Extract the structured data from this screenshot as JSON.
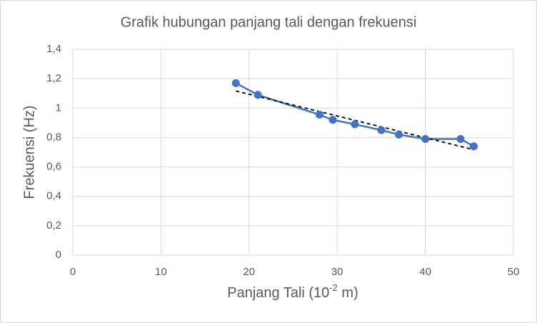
{
  "chart_data": {
    "type": "scatter",
    "title": "Grafik hubungan  panjang tali dengan frekuensi",
    "x_label": [
      "Panjang Tali  (10",
      "-2",
      " m)"
    ],
    "y_label": "Frekuensi (Hz)",
    "x": [
      18.5,
      21,
      28,
      29.5,
      32,
      35,
      37,
      40,
      44,
      45.5
    ],
    "series": [
      {
        "color": "#4472c4",
        "values": [
          1.17,
          1.09,
          0.955,
          0.92,
          0.89,
          0.85,
          0.82,
          0.79,
          0.79,
          0.74
        ]
      }
    ],
    "trendline": "linear",
    "xlim": [
      0,
      50
    ],
    "xticks": [
      0,
      10,
      20,
      30,
      40,
      50
    ],
    "ylim": [
      0,
      1.4
    ],
    "yticks": [
      0,
      {
        "value": 0.2,
        "label": "0,2"
      },
      {
        "value": 0.4,
        "label": "0,4"
      },
      {
        "value": 0.6,
        "label": "0,6"
      },
      {
        "value": 0.8,
        "label": "0,8"
      },
      1,
      {
        "value": 1.2,
        "label": "1,2"
      },
      {
        "value": 1.4,
        "label": "1,4"
      }
    ],
    "grid": true
  }
}
